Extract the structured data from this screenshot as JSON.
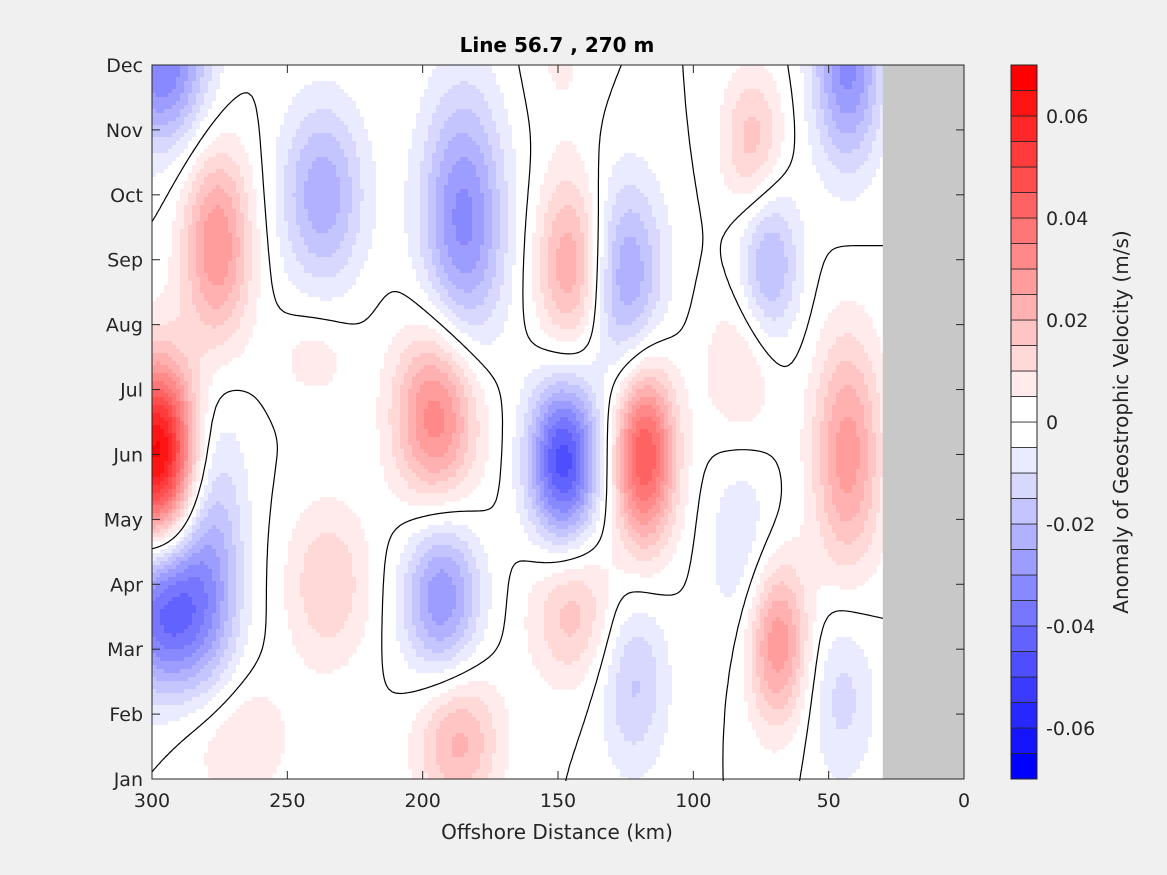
{
  "chart_data": {
    "type": "heatmap",
    "subtype": "filled-contour",
    "title": "Line 56.7 , 270 m",
    "xlabel": "Offshore Distance (km)",
    "ylabel": "",
    "xlim": [
      300,
      0
    ],
    "x_reversed": true,
    "x_ticks": [
      300,
      250,
      200,
      150,
      100,
      50,
      0
    ],
    "x_tick_labels": [
      "300",
      "250",
      "200",
      "150",
      "100",
      "50",
      "0"
    ],
    "y_tick_labels": [
      "Jan",
      "Feb",
      "Mar",
      "Apr",
      "May",
      "Jun",
      "Jul",
      "Aug",
      "Sep",
      "Oct",
      "Nov",
      "Dec"
    ],
    "no_data_region": {
      "x_from": 30,
      "x_to": 0,
      "color": "#c8c8c8"
    },
    "colorbar": {
      "label": "Anomaly of Geostrophic Velocity (m/s)",
      "limits": [
        -0.07,
        0.07
      ],
      "step": 0.005,
      "ticks": [
        -0.06,
        -0.04,
        -0.02,
        0,
        0.02,
        0.04,
        0.06
      ],
      "tick_labels": [
        "-0.06",
        "-0.04",
        "-0.02",
        "0",
        "0.02",
        "0.04",
        "0.06"
      ],
      "negative_color": "#0000ff",
      "positive_color": "#ff0000",
      "zero_color": "#ffffff"
    },
    "features": [
      {
        "x": 298,
        "month": 5.0,
        "value": 0.068,
        "sx": 10,
        "sy": 1.0
      },
      {
        "x": 295,
        "month": 2.6,
        "value": -0.042,
        "sx": 12,
        "sy": 0.9
      },
      {
        "x": 296,
        "month": 11.0,
        "value": -0.035,
        "sx": 12,
        "sy": 0.9
      },
      {
        "x": 276,
        "month": 8.2,
        "value": 0.03,
        "sx": 9,
        "sy": 1.1
      },
      {
        "x": 278,
        "month": 3.5,
        "value": -0.02,
        "sx": 9,
        "sy": 1.6
      },
      {
        "x": 270,
        "month": 0.6,
        "value": 0.012,
        "sx": 14,
        "sy": 0.7
      },
      {
        "x": 237,
        "month": 9.0,
        "value": -0.024,
        "sx": 11,
        "sy": 1.0
      },
      {
        "x": 240,
        "month": 6.5,
        "value": 0.008,
        "sx": 10,
        "sy": 0.5
      },
      {
        "x": 235,
        "month": 3.0,
        "value": 0.015,
        "sx": 11,
        "sy": 0.9
      },
      {
        "x": 185,
        "month": 8.6,
        "value": -0.032,
        "sx": 11,
        "sy": 1.4
      },
      {
        "x": 195,
        "month": 5.6,
        "value": 0.034,
        "sx": 11,
        "sy": 1.0
      },
      {
        "x": 193,
        "month": 2.8,
        "value": -0.03,
        "sx": 10,
        "sy": 0.9
      },
      {
        "x": 187,
        "month": 0.6,
        "value": 0.022,
        "sx": 11,
        "sy": 0.8
      },
      {
        "x": 145,
        "month": 7.9,
        "value": 0.026,
        "sx": 9,
        "sy": 1.0
      },
      {
        "x": 148,
        "month": 4.9,
        "value": -0.048,
        "sx": 9,
        "sy": 0.9
      },
      {
        "x": 145,
        "month": 2.6,
        "value": 0.018,
        "sx": 11,
        "sy": 0.8
      },
      {
        "x": 149,
        "month": 11.3,
        "value": 0.006,
        "sx": 9,
        "sy": 0.9
      },
      {
        "x": 118,
        "month": 5.0,
        "value": 0.046,
        "sx": 8,
        "sy": 1.0
      },
      {
        "x": 125,
        "month": 7.7,
        "value": -0.026,
        "sx": 10,
        "sy": 1.1
      },
      {
        "x": 122,
        "month": 1.5,
        "value": -0.016,
        "sx": 9,
        "sy": 1.0
      },
      {
        "x": 82,
        "month": 6.3,
        "value": 0.012,
        "sx": 10,
        "sy": 0.9
      },
      {
        "x": 78,
        "month": 9.8,
        "value": 0.018,
        "sx": 8,
        "sy": 0.8
      },
      {
        "x": 72,
        "month": 7.9,
        "value": -0.022,
        "sx": 8,
        "sy": 0.9
      },
      {
        "x": 69,
        "month": 2.1,
        "value": 0.03,
        "sx": 8,
        "sy": 0.9
      },
      {
        "x": 82,
        "month": 3.6,
        "value": -0.01,
        "sx": 9,
        "sy": 1.2
      },
      {
        "x": 43,
        "month": 11.0,
        "value": -0.032,
        "sx": 9,
        "sy": 1.1
      },
      {
        "x": 43,
        "month": 5.0,
        "value": 0.028,
        "sx": 9,
        "sy": 1.3
      },
      {
        "x": 45,
        "month": 1.3,
        "value": -0.012,
        "sx": 9,
        "sy": 1.0
      }
    ]
  }
}
